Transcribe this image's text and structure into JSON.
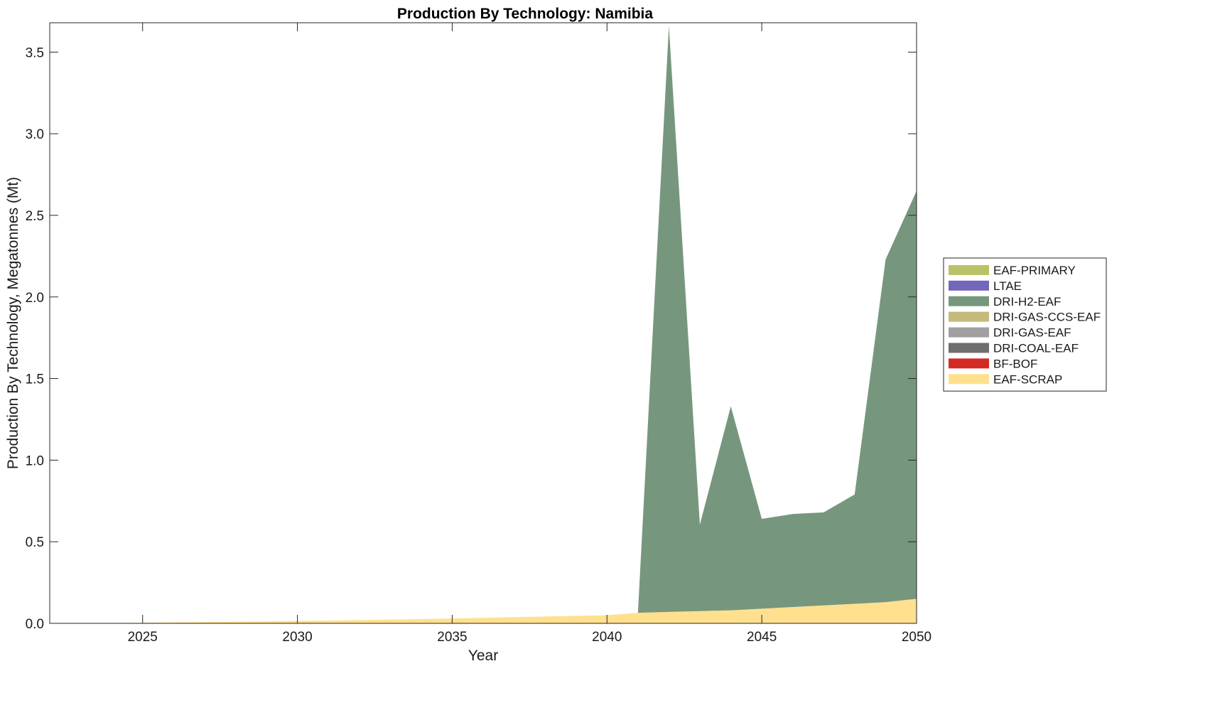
{
  "chart_data": {
    "type": "area",
    "stacked": true,
    "title": "Production By Technology: Namibia",
    "xlabel": "Year",
    "ylabel": "Production By Technology, Megatonnes (Mt)",
    "xlim": [
      2022,
      2050
    ],
    "ylim": [
      0,
      3.68
    ],
    "xticks": [
      2025,
      2030,
      2035,
      2040,
      2045,
      2050
    ],
    "yticks": [
      0.0,
      0.5,
      1.0,
      1.5,
      2.0,
      2.5,
      3.0,
      3.5
    ],
    "xtick_labels": [
      "2025",
      "2030",
      "2035",
      "2040",
      "2045",
      "2050"
    ],
    "ytick_labels": [
      "0.0",
      "0.5",
      "1.0",
      "1.5",
      "2.0",
      "2.5",
      "3.0",
      "3.5"
    ],
    "legend_position": "right",
    "grid": false,
    "x": [
      2022,
      2023,
      2024,
      2025,
      2026,
      2027,
      2028,
      2029,
      2030,
      2031,
      2032,
      2033,
      2034,
      2035,
      2036,
      2037,
      2038,
      2039,
      2040,
      2041,
      2042,
      2043,
      2044,
      2045,
      2046,
      2047,
      2048,
      2049,
      2050
    ],
    "series": [
      {
        "name": "EAF-SCRAP",
        "color": "#FFE08F",
        "values": [
          0.0,
          0.0,
          0.002,
          0.004,
          0.006,
          0.008,
          0.01,
          0.012,
          0.015,
          0.017,
          0.02,
          0.023,
          0.026,
          0.03,
          0.034,
          0.038,
          0.042,
          0.046,
          0.05,
          0.065,
          0.07,
          0.075,
          0.08,
          0.09,
          0.1,
          0.11,
          0.12,
          0.13,
          0.15
        ]
      },
      {
        "name": "BF-BOF",
        "color": "#D42A25",
        "values": [
          0,
          0,
          0,
          0,
          0,
          0,
          0,
          0,
          0,
          0,
          0,
          0,
          0,
          0,
          0,
          0,
          0,
          0,
          0,
          0,
          0,
          0,
          0,
          0,
          0,
          0,
          0,
          0,
          0
        ]
      },
      {
        "name": "DRI-COAL-EAF",
        "color": "#6E6E6E",
        "values": [
          0,
          0,
          0,
          0,
          0,
          0,
          0,
          0,
          0,
          0,
          0,
          0,
          0,
          0,
          0,
          0,
          0,
          0,
          0,
          0,
          0,
          0,
          0,
          0,
          0,
          0,
          0,
          0,
          0
        ]
      },
      {
        "name": "DRI-GAS-EAF",
        "color": "#A0A0A0",
        "values": [
          0,
          0,
          0,
          0,
          0,
          0,
          0,
          0,
          0,
          0,
          0,
          0,
          0,
          0,
          0,
          0,
          0,
          0,
          0,
          0,
          0,
          0,
          0,
          0,
          0,
          0,
          0,
          0,
          0
        ]
      },
      {
        "name": "DRI-GAS-CCS-EAF",
        "color": "#C5BA7A",
        "values": [
          0,
          0,
          0,
          0,
          0,
          0,
          0,
          0,
          0,
          0,
          0,
          0,
          0,
          0,
          0,
          0,
          0,
          0,
          0,
          0,
          0,
          0,
          0,
          0,
          0,
          0,
          0,
          0,
          0
        ]
      },
      {
        "name": "DRI-H2-EAF",
        "color": "#76977D",
        "values": [
          0,
          0,
          0,
          0,
          0,
          0,
          0,
          0,
          0,
          0,
          0,
          0,
          0,
          0,
          0,
          0,
          0,
          0,
          0,
          0,
          3.59,
          0.53,
          1.25,
          0.55,
          0.57,
          0.57,
          0.67,
          2.1,
          2.5
        ]
      },
      {
        "name": "LTAE",
        "color": "#7466BA",
        "values": [
          0,
          0,
          0,
          0,
          0,
          0,
          0,
          0,
          0,
          0,
          0,
          0,
          0,
          0,
          0,
          0,
          0,
          0,
          0,
          0,
          0,
          0,
          0,
          0,
          0,
          0,
          0,
          0,
          0
        ]
      },
      {
        "name": "EAF-PRIMARY",
        "color": "#BAC268",
        "values": [
          0,
          0,
          0,
          0,
          0,
          0,
          0,
          0,
          0,
          0,
          0,
          0,
          0,
          0,
          0,
          0,
          0,
          0,
          0,
          0,
          0,
          0,
          0,
          0,
          0,
          0,
          0,
          0,
          0
        ]
      }
    ],
    "legend_order": [
      "EAF-PRIMARY",
      "LTAE",
      "DRI-H2-EAF",
      "DRI-GAS-CCS-EAF",
      "DRI-GAS-EAF",
      "DRI-COAL-EAF",
      "BF-BOF",
      "EAF-SCRAP"
    ]
  }
}
